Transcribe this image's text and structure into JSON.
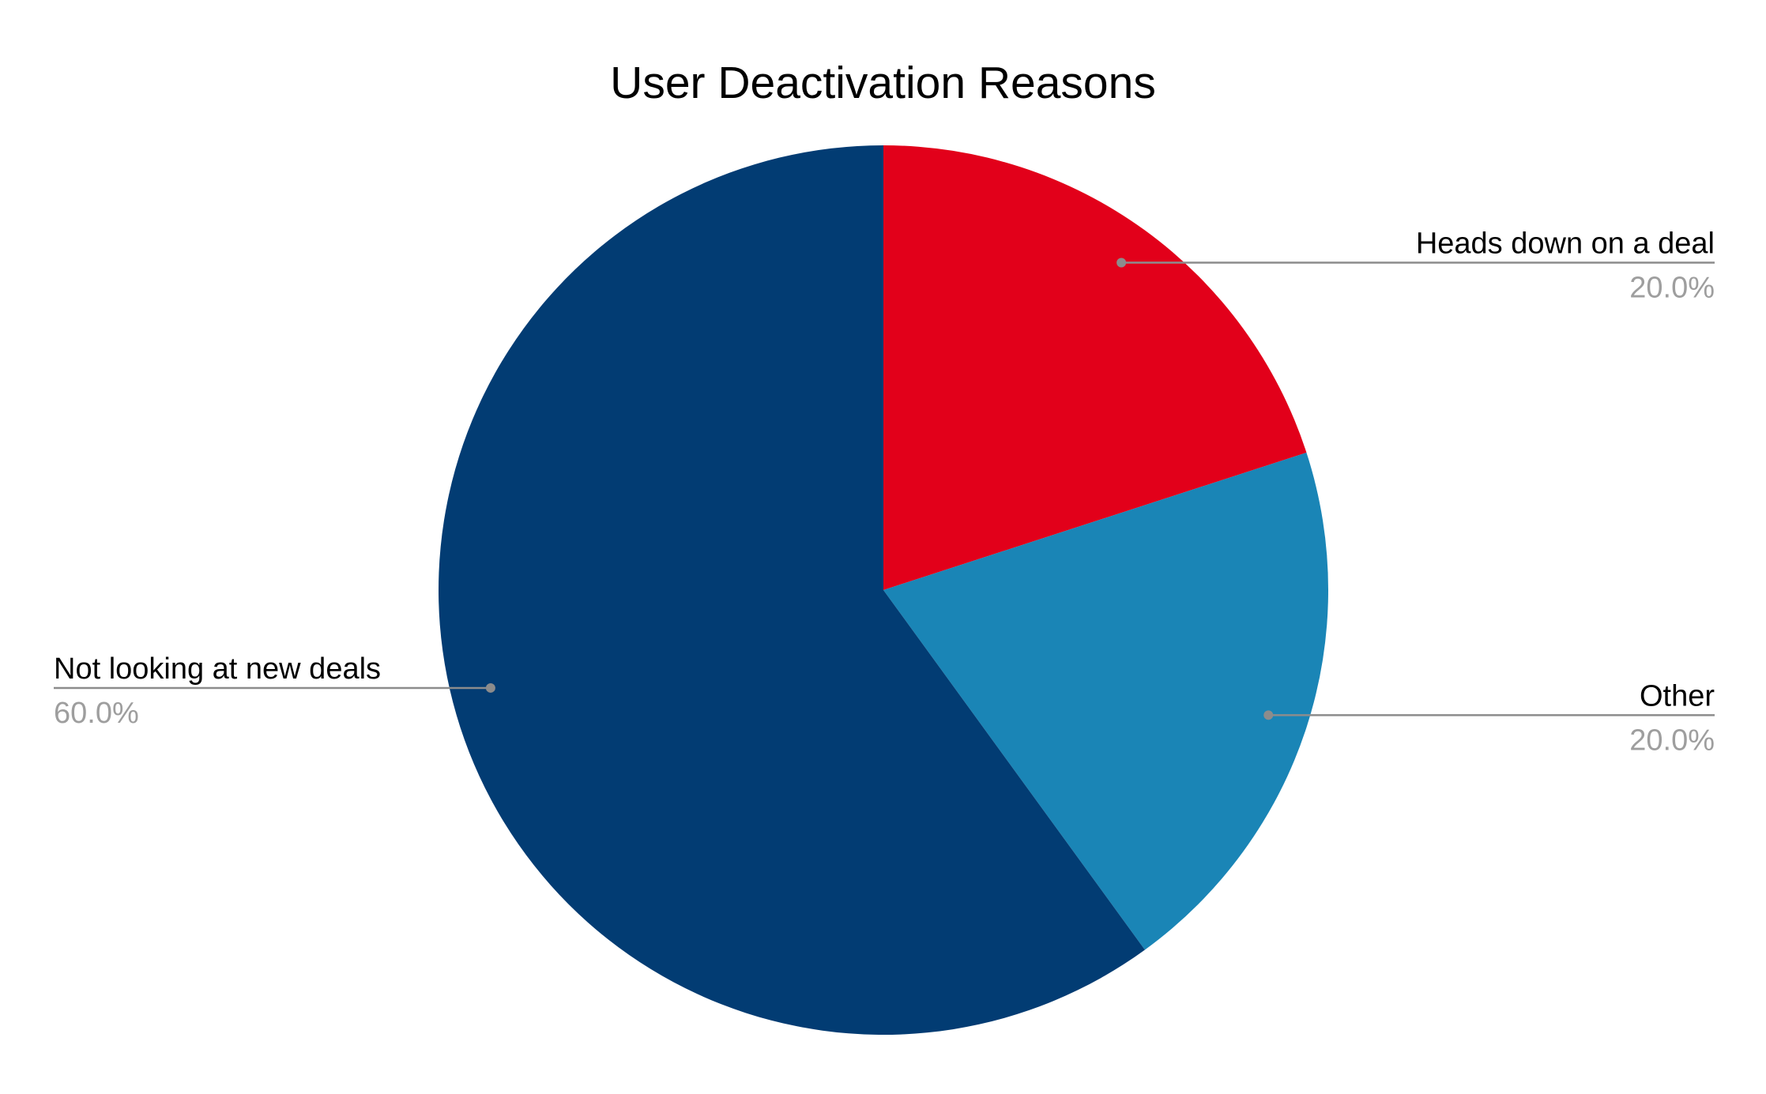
{
  "chart_data": {
    "type": "pie",
    "title": "User Deactivation Reasons",
    "slices": [
      {
        "label": "Heads down on a deal",
        "value": 20.0,
        "percent_label": "20.0%",
        "color": "#E2001A"
      },
      {
        "label": "Other",
        "value": 20.0,
        "percent_label": "20.0%",
        "color": "#1A85B6"
      },
      {
        "label": "Not looking at new deals",
        "value": 60.0,
        "percent_label": "60.0%",
        "color": "#023C73"
      }
    ],
    "start_angle": "12 o'clock",
    "direction": "clockwise",
    "label_color": "#000000",
    "percent_color": "#9E9E9E",
    "leader_color": "#8C8C8C"
  }
}
